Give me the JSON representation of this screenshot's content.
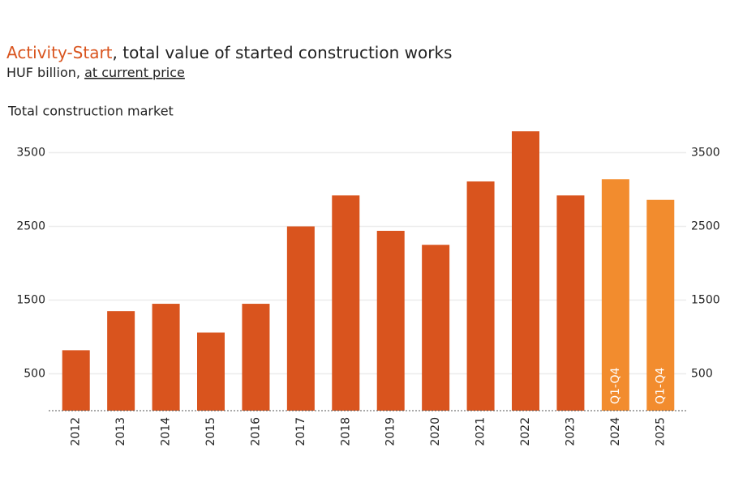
{
  "chart_data": {
    "type": "bar",
    "title_parts": [
      "Activity-Start",
      ", total value of started construction works"
    ],
    "subtitle_parts": [
      "HUF billion, ",
      "at current price"
    ],
    "panel_title": "Total construction market",
    "categories": [
      "2012",
      "2013",
      "2014",
      "2015",
      "2016",
      "2017",
      "2018",
      "2019",
      "2020",
      "2021",
      "2022",
      "2023",
      "2024",
      "2025"
    ],
    "values": [
      820,
      1350,
      1450,
      1060,
      1450,
      2500,
      2920,
      2440,
      2250,
      3110,
      3790,
      2920,
      3140,
      2860
    ],
    "colors": [
      "#d9541e",
      "#d9541e",
      "#d9541e",
      "#d9541e",
      "#d9541e",
      "#d9541e",
      "#d9541e",
      "#d9541e",
      "#d9541e",
      "#d9541e",
      "#d9541e",
      "#d9541e",
      "#f28c2e",
      "#f28c2e"
    ],
    "bar_annotations": [
      null,
      null,
      null,
      null,
      null,
      null,
      null,
      null,
      null,
      null,
      null,
      null,
      "Q1-Q4",
      "Q1-Q4"
    ],
    "ylim": [
      0,
      3900
    ],
    "yticks": [
      500,
      1500,
      2500,
      3500
    ],
    "grid": true
  }
}
